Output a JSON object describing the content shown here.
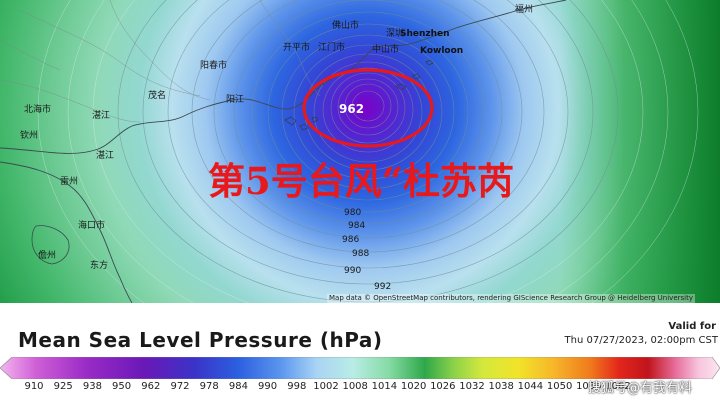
{
  "map": {
    "cities": [
      {
        "id": "c1",
        "label": "福州"
      },
      {
        "id": "c2",
        "label": "Shenzhen"
      },
      {
        "id": "c3",
        "label": "Kowloon"
      },
      {
        "id": "c4",
        "label": "深圳"
      },
      {
        "id": "c5",
        "label": "佛山市"
      },
      {
        "id": "c6",
        "label": "中山市"
      },
      {
        "id": "c7",
        "label": "江门市"
      },
      {
        "id": "c8",
        "label": "开平市"
      },
      {
        "id": "c9",
        "label": "阳春市"
      },
      {
        "id": "c10",
        "label": "阳江"
      },
      {
        "id": "c11",
        "label": "茂名"
      },
      {
        "id": "c12",
        "label": "湛江"
      },
      {
        "id": "c13",
        "label": "北海市"
      },
      {
        "id": "c14",
        "label": "钦州"
      },
      {
        "id": "c15",
        "label": "海口市"
      },
      {
        "id": "c16",
        "label": "儋州"
      },
      {
        "id": "c17",
        "label": "东方"
      },
      {
        "id": "c18",
        "label": "湛江"
      },
      {
        "id": "c19",
        "label": "雷州"
      }
    ],
    "isobar_labels": [
      "980",
      "984",
      "986",
      "988",
      "990",
      "992"
    ],
    "center_pressure": "962",
    "headline": "第5号台风“杜苏芮",
    "attribution": "Map data © OpenStreetMap contributors, rendering GIScience Research Group @ Heidelberg University"
  },
  "legend": {
    "title": "Mean Sea Level Pressure (hPa)",
    "valid_for_label": "Valid for",
    "valid_time": "Thu 07/27/2023, 02:00pm CST",
    "tick_labels": [
      "910",
      "925",
      "938",
      "950",
      "962",
      "972",
      "978",
      "984",
      "990",
      "998",
      "1002",
      "1008",
      "1014",
      "1020",
      "1026",
      "1032",
      "1038",
      "1044",
      "1050",
      "1056",
      "1062"
    ],
    "colors": {
      "deep_purple": "#7b00a8",
      "violet": "#5a1fd0",
      "blue": "#2b5fe0",
      "light_blue": "#9ec8f0",
      "cyan": "#88d6d4",
      "green_pale": "#a7e0b8",
      "green": "#2da84a",
      "green_dark": "#0f7a2c",
      "yellow": "#f2e32a",
      "orange": "#f59a1c",
      "red": "#e2261c",
      "pink": "#f39ac8"
    }
  },
  "watermark": "搜狐号@有我有料"
}
